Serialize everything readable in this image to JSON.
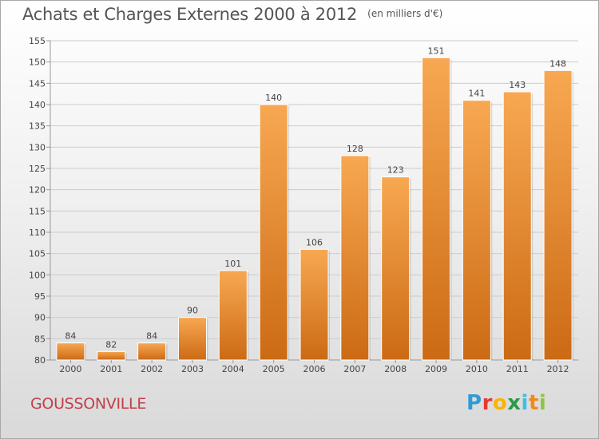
{
  "header": {
    "title": "Achats et Charges Externes 2000 à 2012",
    "unit": "(en milliers d'€)"
  },
  "footer": {
    "commune": "GOUSSONVILLE",
    "brand_letters": [
      "P",
      "r",
      "o",
      "x",
      "i",
      "t",
      "i"
    ],
    "brand_colors": [
      "#2e9bd6",
      "#e63b2e",
      "#f7b500",
      "#2a9a47",
      "#3dbde8",
      "#f08a1c",
      "#8cc63f"
    ]
  },
  "colors": {
    "bar_top": "#f8a852",
    "bar_bottom": "#cc6a14",
    "grid": "#cccccc",
    "axis_text": "#444444"
  },
  "chart_data": {
    "type": "bar",
    "title": "Achats et Charges Externes 2000 à 2012",
    "subtitle": "(en milliers d'€)",
    "categories": [
      "2000",
      "2001",
      "2002",
      "2003",
      "2004",
      "2005",
      "2006",
      "2007",
      "2008",
      "2009",
      "2010",
      "2011",
      "2012"
    ],
    "values": [
      84,
      82,
      84,
      90,
      101,
      140,
      106,
      128,
      123,
      151,
      141,
      143,
      148
    ],
    "ylim": [
      80,
      155
    ],
    "yticks": [
      80,
      85,
      90,
      95,
      100,
      105,
      110,
      115,
      120,
      125,
      130,
      135,
      140,
      145,
      150,
      155
    ],
    "grid": true,
    "legend": "none"
  }
}
